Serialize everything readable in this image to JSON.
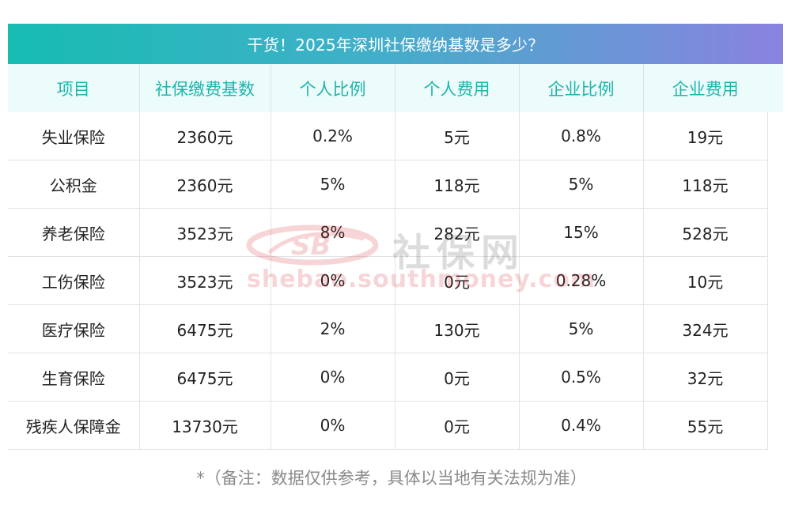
{
  "title": "干货！2025年深圳社保缴纳基数是多少？",
  "table": {
    "headers": [
      "项目",
      "社保缴费基数",
      "个人比例",
      "个人费用",
      "企业比例",
      "企业费用"
    ],
    "rows": [
      [
        "失业保险",
        "2360元",
        "0.2%",
        "5元",
        "0.8%",
        "19元"
      ],
      [
        "公积金",
        "2360元",
        "5%",
        "118元",
        "5%",
        "118元"
      ],
      [
        "养老保险",
        "3523元",
        "8%",
        "282元",
        "15%",
        "528元"
      ],
      [
        "工伤保险",
        "3523元",
        "0%",
        "0元",
        "0.28%",
        "10元"
      ],
      [
        "医疗保险",
        "6475元",
        "2%",
        "130元",
        "5%",
        "324元"
      ],
      [
        "生育保险",
        "6475元",
        "0%",
        "0元",
        "0.5%",
        "32元"
      ],
      [
        "残疾人保障金",
        "13730元",
        "0%",
        "0元",
        "0.4%",
        "55元"
      ]
    ]
  },
  "watermark": {
    "logo_text": "SB",
    "brand_cn": "社保网",
    "url": "shebao.southmoney.com"
  },
  "note": "*（备注：数据仅供参考，具体以当地有关法规为准）",
  "colors": {
    "title_gradient_start": "#17bcb2",
    "title_gradient_end": "#8a82e0",
    "header_text": "#1fb5ac",
    "header_bg": "#ecfcfb",
    "note_text": "#8a8a8a"
  }
}
